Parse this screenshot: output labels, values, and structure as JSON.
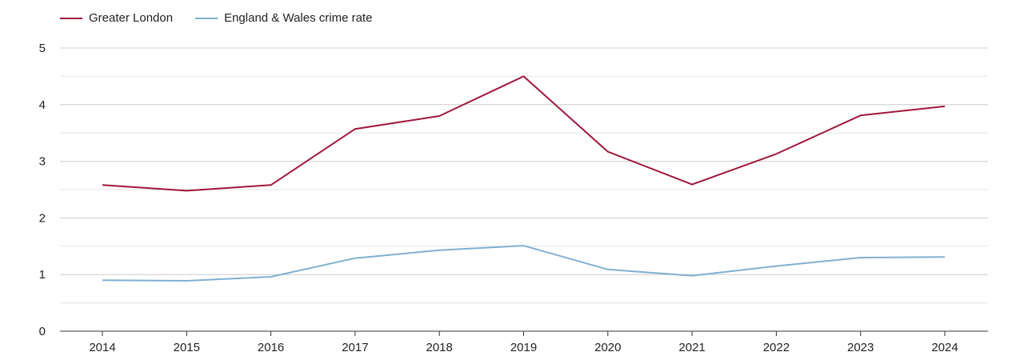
{
  "chart_data": {
    "type": "line",
    "x": [
      "2014",
      "2015",
      "2016",
      "2017",
      "2018",
      "2019",
      "2020",
      "2021",
      "2022",
      "2023",
      "2024"
    ],
    "ylim": [
      0,
      5
    ],
    "yticks": [
      "0",
      "1",
      "2",
      "3",
      "4",
      "5"
    ],
    "grid": true,
    "legend_position": "top-left",
    "series": [
      {
        "name": "Greater London",
        "color": "#a0173c",
        "values": [
          2.58,
          2.48,
          2.58,
          3.57,
          3.8,
          4.5,
          3.17,
          2.59,
          3.13,
          3.81,
          3.97
        ]
      },
      {
        "name": "England & Wales crime rate",
        "color": "#7fb0d2",
        "values": [
          0.9,
          0.89,
          0.96,
          1.29,
          1.43,
          1.51,
          1.09,
          0.98,
          1.15,
          1.3,
          1.31
        ]
      }
    ]
  }
}
